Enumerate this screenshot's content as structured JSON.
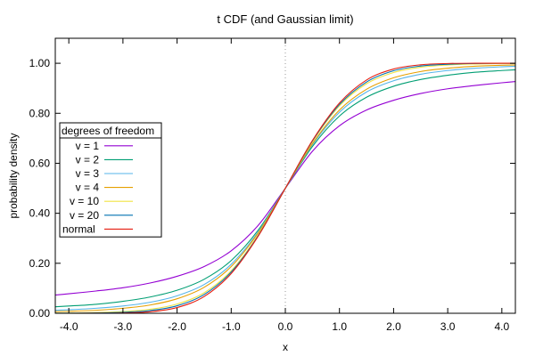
{
  "chart_data": {
    "type": "line",
    "title": "t CDF (and Gaussian limit)",
    "xlabel": "x",
    "ylabel": "probability density",
    "xlim": [
      -4.25,
      4.25
    ],
    "ylim": [
      0,
      1.1
    ],
    "x_ticks": [
      -4,
      -3,
      -2,
      -1,
      0,
      1,
      2,
      3,
      4
    ],
    "x_tick_labels": [
      "-4.0",
      "-3.0",
      "-2.0",
      "-1.0",
      "0.0",
      "1.0",
      "2.0",
      "3.0",
      "4.0"
    ],
    "y_ticks": [
      0,
      0.2,
      0.4,
      0.6,
      0.8,
      1.0
    ],
    "y_tick_labels": [
      "0.00",
      "0.20",
      "0.40",
      "0.60",
      "0.80",
      "1.00"
    ],
    "grid": false,
    "reference_line": {
      "x": 0,
      "style": "dotted",
      "color": "#999999"
    },
    "legend": {
      "title": "degrees of freedom",
      "position": "left-middle"
    },
    "x": [
      -4.25,
      -4,
      -3.5,
      -3,
      -2.5,
      -2,
      -1.5,
      -1,
      -0.5,
      0,
      0.5,
      1,
      1.5,
      2,
      2.5,
      3,
      3.5,
      4,
      4.25
    ],
    "series": [
      {
        "name": "v = 1",
        "color": "#9400d3",
        "values": [
          0.073,
          0.078,
          0.089,
          0.102,
          0.121,
          0.148,
          0.187,
          0.25,
          0.352,
          0.5,
          0.648,
          0.75,
          0.813,
          0.852,
          0.879,
          0.898,
          0.911,
          0.922,
          0.927
        ]
      },
      {
        "name": "v = 2",
        "color": "#009e73",
        "values": [
          0.026,
          0.029,
          0.036,
          0.048,
          0.065,
          0.092,
          0.136,
          0.211,
          0.333,
          0.5,
          0.667,
          0.789,
          0.864,
          0.908,
          0.935,
          0.952,
          0.964,
          0.971,
          0.974
        ]
      },
      {
        "name": "v = 3",
        "color": "#56b4e9",
        "values": [
          0.012,
          0.014,
          0.02,
          0.029,
          0.044,
          0.07,
          0.115,
          0.196,
          0.326,
          0.5,
          0.674,
          0.804,
          0.885,
          0.93,
          0.956,
          0.971,
          0.98,
          0.986,
          0.988
        ]
      },
      {
        "name": "v = 4",
        "color": "#e69f00",
        "values": [
          0.007,
          0.008,
          0.012,
          0.02,
          0.033,
          0.058,
          0.104,
          0.187,
          0.322,
          0.5,
          0.678,
          0.813,
          0.896,
          0.942,
          0.967,
          0.98,
          0.988,
          0.992,
          0.993
        ]
      },
      {
        "name": "v = 10",
        "color": "#f0e442",
        "values": [
          0.001,
          0.001,
          0.003,
          0.007,
          0.016,
          0.037,
          0.082,
          0.17,
          0.314,
          0.5,
          0.686,
          0.83,
          0.918,
          0.963,
          0.984,
          0.993,
          0.997,
          0.999,
          0.999
        ]
      },
      {
        "name": "v = 20",
        "color": "#0072b2",
        "values": [
          0.0002,
          0.0004,
          0.001,
          0.004,
          0.011,
          0.03,
          0.075,
          0.165,
          0.311,
          0.5,
          0.689,
          0.835,
          0.925,
          0.97,
          0.989,
          0.996,
          0.999,
          1.0,
          1.0
        ]
      },
      {
        "name": "normal",
        "color": "#e51e10",
        "values": [
          0.0,
          0.0,
          0.0002,
          0.001,
          0.006,
          0.023,
          0.067,
          0.159,
          0.309,
          0.5,
          0.691,
          0.841,
          0.933,
          0.977,
          0.994,
          0.999,
          1.0,
          1.0,
          1.0
        ]
      }
    ]
  }
}
